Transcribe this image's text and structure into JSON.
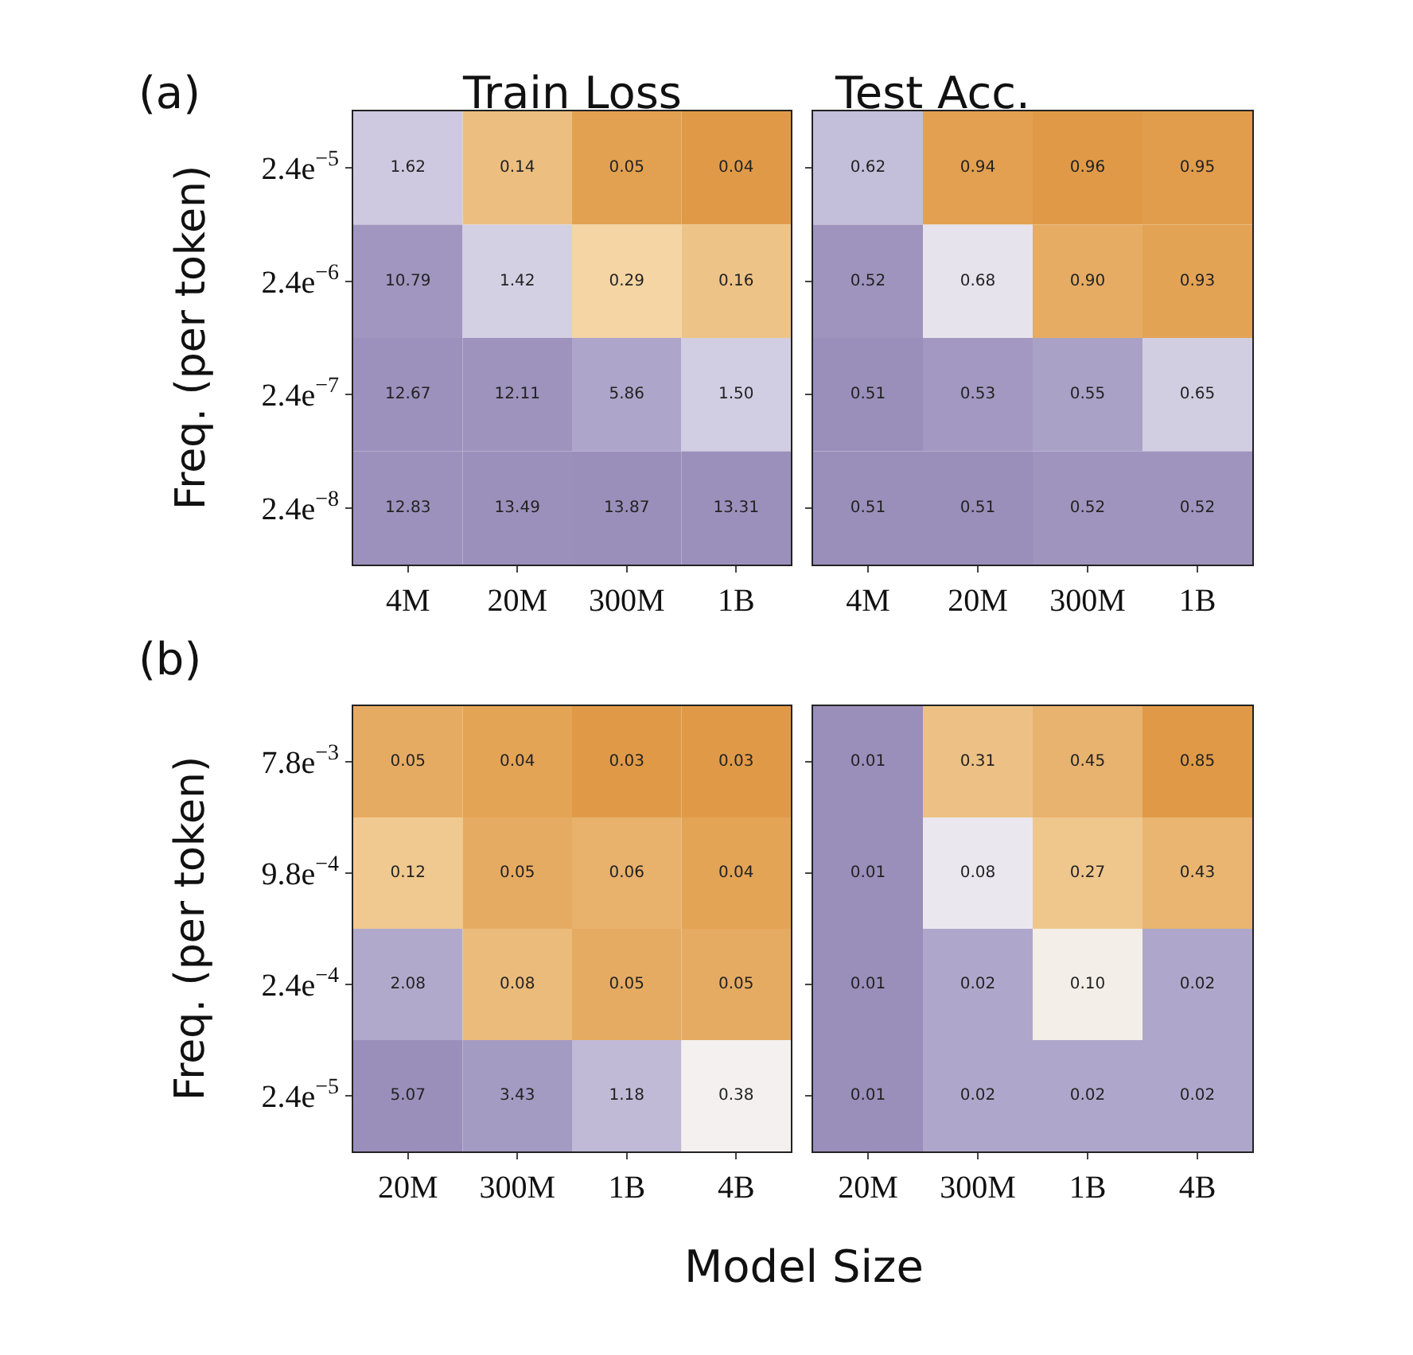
{
  "chart_data": [
    {
      "type": "heatmap",
      "title": "Train Loss",
      "ylabel": "Freq. (per token)",
      "annotations": [
        "(a)"
      ],
      "categories": [
        "4M",
        "20M",
        "300M",
        "1B"
      ],
      "y_categories": [
        "2.4e$^{−5}$",
        "2.4e$^{−6}$",
        "2.4e$^{−7}$",
        "2.4e$^{−8}$"
      ],
      "cells": [
        [
          1.62,
          0.14,
          0.05,
          0.04
        ],
        [
          10.79,
          1.42,
          0.29,
          0.16
        ],
        [
          12.67,
          12.11,
          5.86,
          1.5
        ],
        [
          12.83,
          13.49,
          13.87,
          13.31
        ]
      ],
      "cell_labels": [
        [
          "1.62",
          "0.14",
          "0.05",
          "0.04"
        ],
        [
          "10.79",
          "1.42",
          "0.29",
          "0.16"
        ],
        [
          "12.67",
          "12.11",
          "5.86",
          "1.50"
        ],
        [
          "12.83",
          "13.49",
          "13.87",
          "13.31"
        ]
      ]
    },
    {
      "type": "heatmap",
      "title": "Test Acc.",
      "tick_labels": "x",
      "categories": [
        "4M",
        "20M",
        "300M",
        "1B"
      ],
      "y_categories": [
        "2.4e$^{−5}$",
        "2.4e$^{−6}$",
        "2.4e$^{−7}$",
        "2.4e$^{−8}$"
      ],
      "cells": [
        [
          0.62,
          0.94,
          0.96,
          0.95
        ],
        [
          0.52,
          0.68,
          0.9,
          0.93
        ],
        [
          0.51,
          0.53,
          0.55,
          0.65
        ],
        [
          0.51,
          0.51,
          0.52,
          0.52
        ]
      ],
      "cell_labels": [
        [
          "0.62",
          "0.94",
          "0.96",
          "0.95"
        ],
        [
          "0.52",
          "0.68",
          "0.90",
          "0.93"
        ],
        [
          "0.51",
          "0.53",
          "0.55",
          "0.65"
        ],
        [
          "0.51",
          "0.51",
          "0.52",
          "0.52"
        ]
      ]
    },
    {
      "type": "heatmap",
      "ylabel": "Freq. (per token)",
      "xlabel": "Model Size",
      "annotations": [
        "(b)"
      ],
      "categories": [
        "20M",
        "300M",
        "1B",
        "4B"
      ],
      "y_categories": [
        "7.8e$^{−3}$",
        "9.8e$^{−4}$",
        "2.4e$^{−4}$",
        "2.4e$^{−5}$"
      ],
      "cells": [
        [
          0.05,
          0.04,
          0.03,
          0.03
        ],
        [
          0.12,
          0.05,
          0.06,
          0.04
        ],
        [
          2.08,
          0.08,
          0.05,
          0.05
        ],
        [
          5.07,
          3.43,
          1.18,
          0.38
        ]
      ],
      "cell_labels": [
        [
          "0.05",
          "0.04",
          "0.03",
          "0.03"
        ],
        [
          "0.12",
          "0.05",
          "0.06",
          "0.04"
        ],
        [
          "2.08",
          "0.08",
          "0.05",
          "0.05"
        ],
        [
          "5.07",
          "3.43",
          "1.18",
          "0.38"
        ]
      ]
    },
    {
      "type": "heatmap",
      "tick_labels": "x",
      "categories": [
        "20M",
        "300M",
        "1B",
        "4B"
      ],
      "y_categories": [
        "7.8e$^{−3}$",
        "9.8e$^{−4}$",
        "2.4e$^{−4}$",
        "2.4e$^{−5}$"
      ],
      "cells": [
        [
          0.01,
          0.31,
          0.45,
          0.85
        ],
        [
          0.01,
          0.08,
          0.27,
          0.43
        ],
        [
          0.01,
          0.02,
          0.1,
          0.02
        ],
        [
          0.01,
          0.02,
          0.02,
          0.02
        ]
      ],
      "cell_labels": [
        [
          "0.01",
          "0.31",
          "0.45",
          "0.85"
        ],
        [
          "0.01",
          "0.08",
          "0.27",
          "0.43"
        ],
        [
          "0.01",
          "0.02",
          "0.10",
          "0.02"
        ],
        [
          "0.01",
          "0.02",
          "0.02",
          "0.02"
        ]
      ]
    }
  ]
}
